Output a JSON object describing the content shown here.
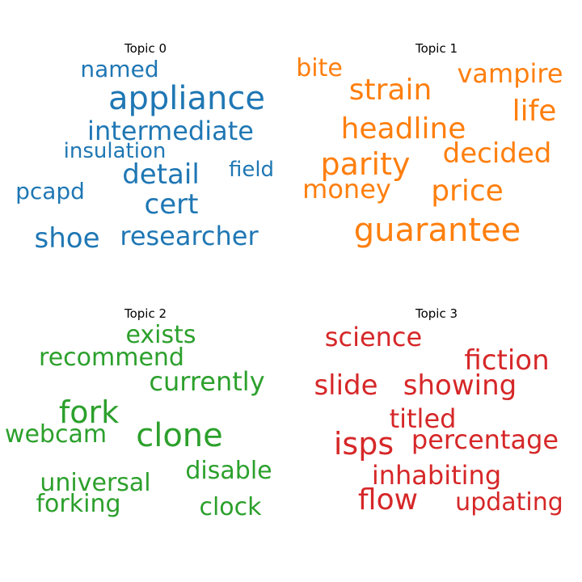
{
  "chart_data": [
    {
      "type": "wordcloud",
      "title": "Topic 0",
      "color": "#1f77b4",
      "words": [
        "appliance",
        "intermediate",
        "detail",
        "cert",
        "researcher",
        "shoe",
        "named",
        "insulation",
        "pcapd",
        "field"
      ]
    },
    {
      "type": "wordcloud",
      "title": "Topic 1",
      "color": "#ff7f0e",
      "words": [
        "guarantee",
        "headline",
        "parity",
        "strain",
        "price",
        "decided",
        "life",
        "money",
        "vampire",
        "bite"
      ]
    },
    {
      "type": "wordcloud",
      "title": "Topic 2",
      "color": "#2ca02c",
      "words": [
        "clone",
        "fork",
        "currently",
        "recommend",
        "universal",
        "disable",
        "exists",
        "clock",
        "forking",
        "webcam"
      ]
    },
    {
      "type": "wordcloud",
      "title": "Topic 3",
      "color": "#d62728",
      "words": [
        "isps",
        "percentage",
        "fiction",
        "inhabiting",
        "titled",
        "slide",
        "showing",
        "science",
        "flow",
        "updating"
      ]
    }
  ]
}
